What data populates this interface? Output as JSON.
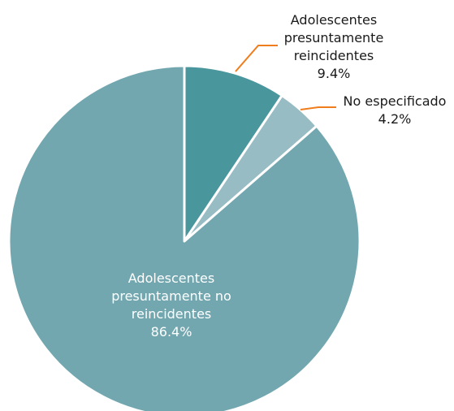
{
  "chart_data": {
    "type": "pie",
    "slices": [
      {
        "label_lines": [
          "Adolescentes",
          "presuntamente",
          "reincidentes"
        ],
        "value": 9.4,
        "value_label": "9.4%",
        "color": "#4a969d",
        "label_color": "#1a1a1a",
        "leader_color": "#f07d1b"
      },
      {
        "label_lines": [
          "No especificado"
        ],
        "value": 4.2,
        "value_label": "4.2%",
        "color": "#97bcc3",
        "label_color": "#1a1a1a",
        "leader_color": "#f07d1b"
      },
      {
        "label_lines": [
          "Adolescentes",
          "presuntamente no",
          "reincidentes"
        ],
        "value": 86.4,
        "value_label": "86.4%",
        "color": "#72a7b0",
        "label_color": "#ffffff"
      }
    ]
  }
}
